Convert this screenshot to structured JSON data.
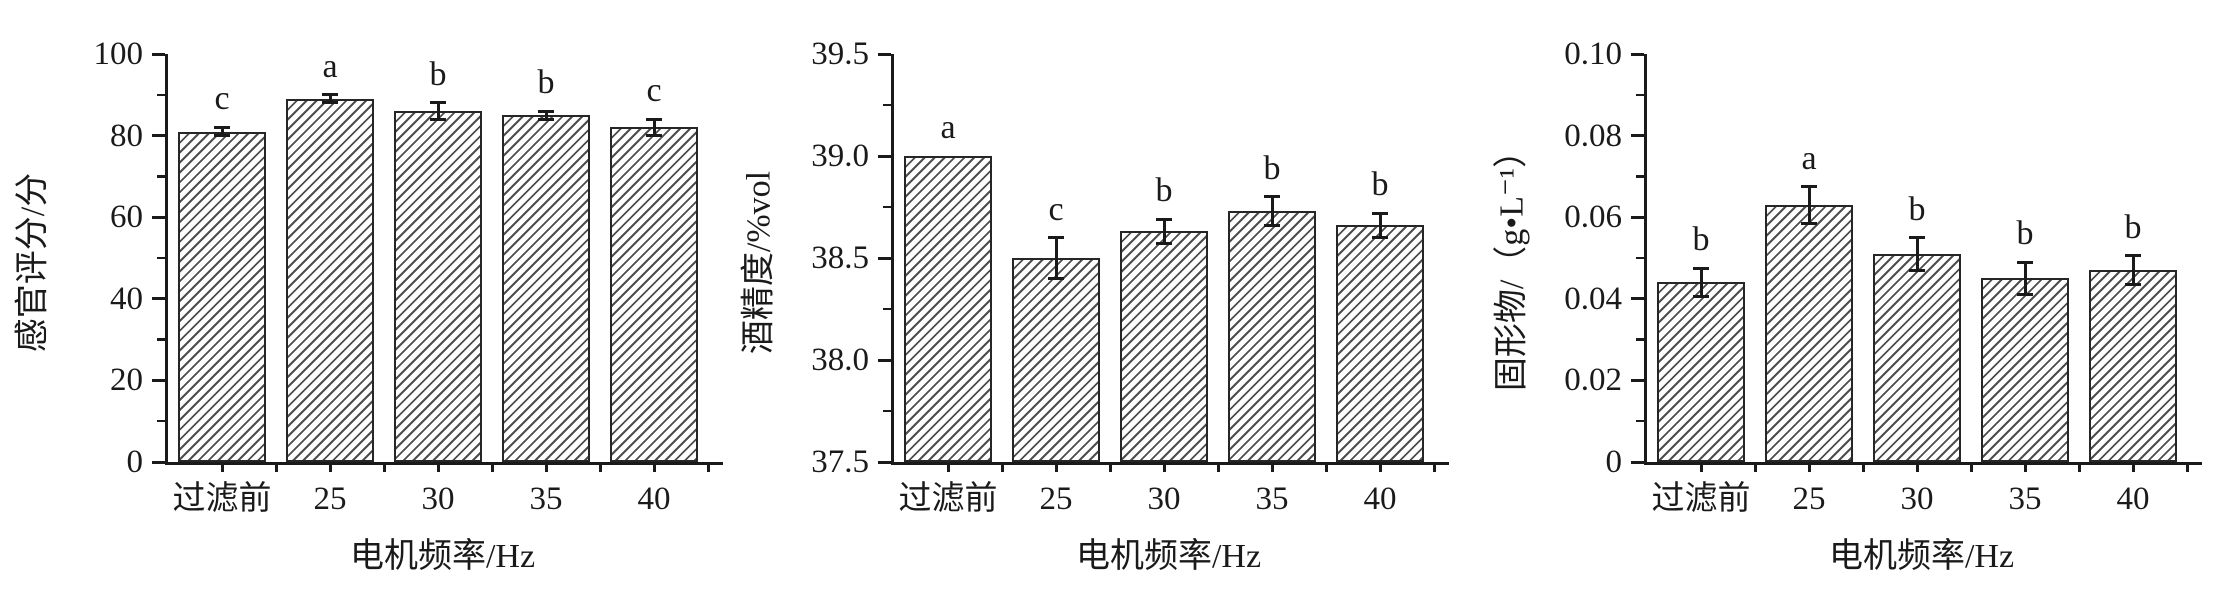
{
  "figure": {
    "description": "Three bar charts showing effect of motor frequency on liquor filtration",
    "background": "#ffffff"
  },
  "colors": {
    "axis": "#1a1a1a",
    "bar_border": "#262626",
    "hatch": "#4d4d4d",
    "text": "#1a1a1a",
    "background": "#ffffff"
  },
  "chart_data": [
    {
      "type": "bar",
      "title": "",
      "xlabel": "电机频率/Hz",
      "ylabel": "感官评分/分",
      "categories": [
        "过滤前",
        "25",
        "30",
        "35",
        "40"
      ],
      "values": [
        81,
        89,
        86,
        85,
        82
      ],
      "errors": [
        1,
        1,
        2,
        1,
        2
      ],
      "sig_letters": [
        "c",
        "a",
        "b",
        "b",
        "c"
      ],
      "ylim": [
        0,
        100
      ],
      "yticks": [
        0,
        20,
        40,
        60,
        80,
        100
      ],
      "ytick_labels": [
        "0",
        "20",
        "40",
        "60",
        "80",
        "100"
      ],
      "bar_style": "diagonal-hatch",
      "grid": false,
      "legend": "none"
    },
    {
      "type": "bar",
      "title": "",
      "xlabel": "电机频率/Hz",
      "ylabel": "酒精度/%vol",
      "categories": [
        "过滤前",
        "25",
        "30",
        "35",
        "40"
      ],
      "values": [
        39.0,
        38.5,
        38.63,
        38.73,
        38.66
      ],
      "errors": [
        0,
        0.1,
        0.06,
        0.07,
        0.06
      ],
      "sig_letters": [
        "a",
        "c",
        "b",
        "b",
        "b"
      ],
      "ylim": [
        37.5,
        39.5
      ],
      "yticks": [
        37.5,
        38.0,
        38.5,
        39.0,
        39.5
      ],
      "ytick_labels": [
        "37.5",
        "38.0",
        "38.5",
        "39.0",
        "39.5"
      ],
      "bar_style": "diagonal-hatch",
      "grid": false,
      "legend": "none"
    },
    {
      "type": "bar",
      "title": "",
      "xlabel": "电机频率/Hz",
      "ylabel": "固形物/（g•L⁻¹）",
      "categories": [
        "过滤前",
        "25",
        "30",
        "35",
        "40"
      ],
      "values": [
        0.044,
        0.063,
        0.051,
        0.045,
        0.047
      ],
      "errors": [
        0.0035,
        0.0045,
        0.004,
        0.004,
        0.0035
      ],
      "sig_letters": [
        "b",
        "a",
        "b",
        "b",
        "b"
      ],
      "ylim": [
        0,
        0.1
      ],
      "yticks": [
        0,
        0.02,
        0.04,
        0.06,
        0.08,
        0.1
      ],
      "ytick_labels": [
        "0",
        "0.02",
        "0.04",
        "0.06",
        "0.08",
        "0.10"
      ],
      "bar_style": "diagonal-hatch",
      "grid": false,
      "legend": "none"
    }
  ]
}
